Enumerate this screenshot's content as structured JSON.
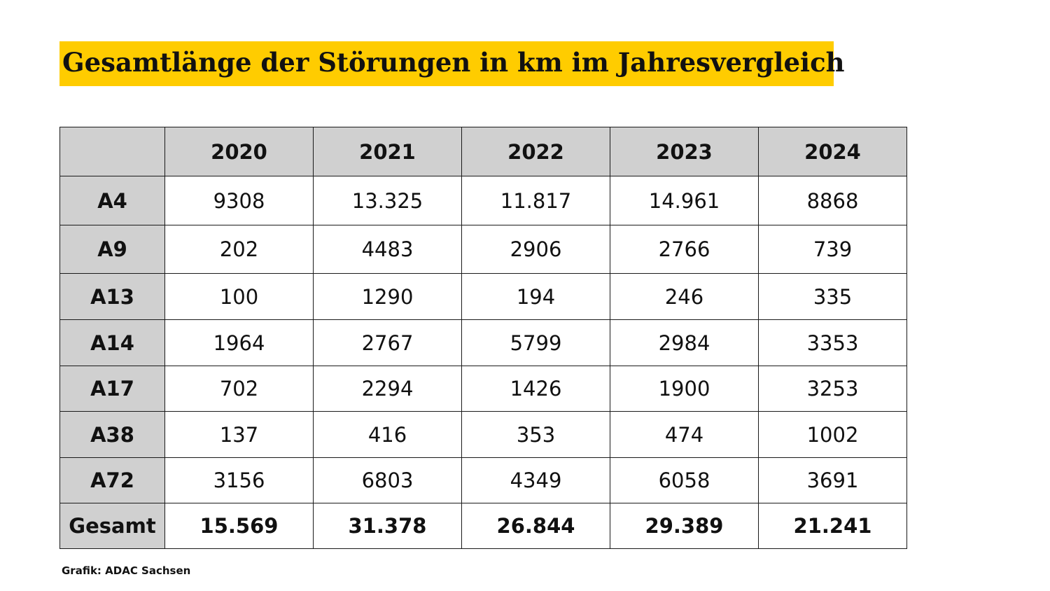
{
  "title": "Gesamtlänge der Störungen in km im Jahresvergleich",
  "source": "Grafik: ADAC Sachsen",
  "colors": {
    "title_background": "#ffcc00",
    "header_background": "#d0d0d0",
    "border": "#1a1a1a"
  },
  "chart_data": {
    "type": "table",
    "title": "Gesamtlänge der Störungen in km im Jahresvergleich",
    "columns": [
      "2020",
      "2021",
      "2022",
      "2023",
      "2024"
    ],
    "rows": [
      {
        "label": "A4",
        "values": [
          "9308",
          "13.325",
          "11.817",
          "14.961",
          "8868"
        ]
      },
      {
        "label": "A9",
        "values": [
          "202",
          "4483",
          "2906",
          "2766",
          "739"
        ]
      },
      {
        "label": "A13",
        "values": [
          "100",
          "1290",
          "194",
          "246",
          "335"
        ]
      },
      {
        "label": "A14",
        "values": [
          "1964",
          "2767",
          "5799",
          "2984",
          "3353"
        ]
      },
      {
        "label": "A17",
        "values": [
          "702",
          "2294",
          "1426",
          "1900",
          "3253"
        ]
      },
      {
        "label": "A38",
        "values": [
          "137",
          "416",
          "353",
          "474",
          "1002"
        ]
      },
      {
        "label": "A72",
        "values": [
          "3156",
          "6803",
          "4349",
          "6058",
          "3691"
        ]
      }
    ],
    "total": {
      "label": "Gesamt",
      "values": [
        "15.569",
        "31.378",
        "26.844",
        "29.389",
        "21.241"
      ]
    }
  }
}
